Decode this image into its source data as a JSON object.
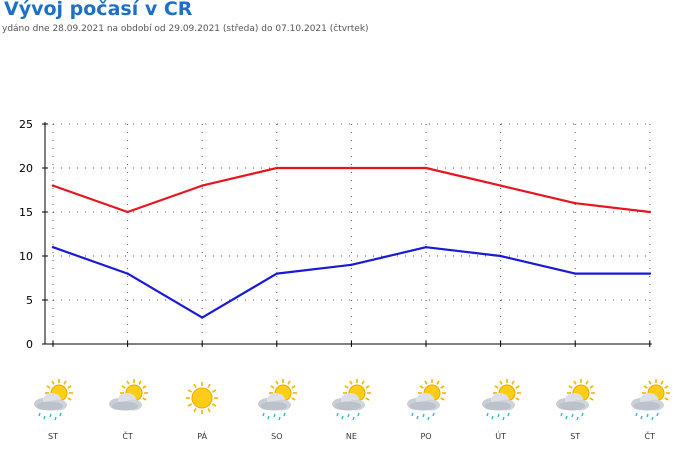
{
  "header": {
    "title": "Vývoj počasí v ČR",
    "subtitle": "ydáno dne 28.09.2021 na období od 29.09.2021 (středa) do 07.10.2021 (čtvrtek)"
  },
  "colors": {
    "max_series": "#e8141e",
    "min_series": "#1a1ad6",
    "title": "#1f6fc4"
  },
  "chart_data": {
    "type": "line",
    "categories": [
      "ST",
      "ČT",
      "PÁ",
      "SO",
      "NE",
      "PO",
      "ÚT",
      "ST",
      "ČT"
    ],
    "series": [
      {
        "values": [
          18,
          15,
          18,
          20,
          20,
          20,
          18,
          16,
          15
        ],
        "color": "#e8141e"
      },
      {
        "values": [
          11,
          8,
          3,
          8,
          9,
          11,
          10,
          8,
          8
        ],
        "color": "#1a1ad6"
      }
    ],
    "y_ticks": [
      "0",
      "5",
      "10",
      "15",
      "20",
      "25"
    ],
    "ylim": [
      0,
      25
    ],
    "grid": "dotted",
    "title": "",
    "xlabel": "",
    "ylabel": ""
  },
  "forecast": {
    "icons": [
      "sun-cloud-rain-icon",
      "sun-cloud-icon",
      "sun-icon",
      "sun-cloud-rain-icon",
      "sun-cloud-rain-icon",
      "sun-cloud-rain-icon",
      "sun-cloud-rain-icon",
      "sun-cloud-rain-icon",
      "sun-cloud-rain-icon"
    ]
  }
}
